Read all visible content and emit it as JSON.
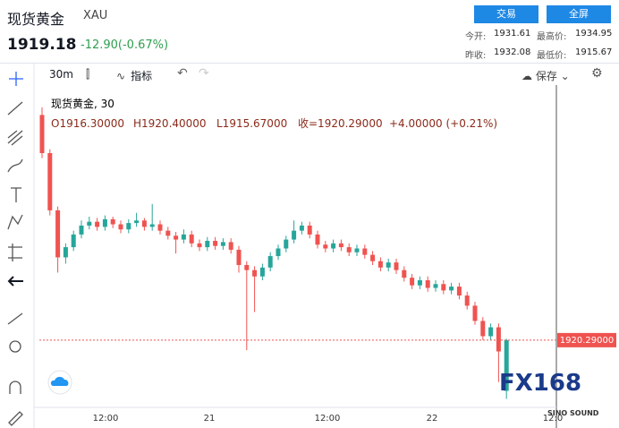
{
  "header": {
    "title": "现货黄金",
    "symbol": "XAU",
    "price": "1919.18",
    "change": "-12.90(-0.67%)",
    "buttons": [
      "交易",
      "全屏"
    ],
    "stats": [
      [
        "今开:",
        "1931.61"
      ],
      [
        "最高价:",
        "1934.95"
      ],
      [
        "昨收:",
        "1932.08"
      ],
      [
        "最低价:",
        "1915.67"
      ]
    ]
  },
  "toolbar": {
    "interval": "30m",
    "indicators": "指标",
    "save": "保存"
  },
  "legend": {
    "name": "现货黄金, 30",
    "open": "O1916.30000",
    "high": "H1920.40000",
    "low": "L1915.67000",
    "close": "收=1920.29000",
    "change": "+4.00000 (+0.21%)"
  },
  "watermark": {
    "brand": "FX168",
    "sub": "SINO SOUND"
  },
  "chart": {
    "type": "candlestick",
    "up_color": "#26a69a",
    "down_color": "#ef5350",
    "ylim": [
      1915.0,
      1940.0
    ],
    "xticks": [
      "12:00",
      "21",
      "12:00",
      "22",
      "12:0"
    ],
    "price_label": {
      "value": 1920.29,
      "label": "1920.29000"
    },
    "candles": [
      [
        1938.0,
        1938.6,
        1934.6,
        1935.0
      ],
      [
        1935.0,
        1935.3,
        1930.1,
        1930.5
      ],
      [
        1930.5,
        1930.8,
        1925.6,
        1926.8
      ],
      [
        1926.8,
        1927.9,
        1926.3,
        1927.6
      ],
      [
        1927.6,
        1928.9,
        1927.3,
        1928.6
      ],
      [
        1928.6,
        1929.7,
        1928.3,
        1929.3
      ],
      [
        1929.3,
        1930.0,
        1929.0,
        1929.6
      ],
      [
        1929.6,
        1929.9,
        1928.9,
        1929.2
      ],
      [
        1929.2,
        1930.1,
        1928.9,
        1929.8
      ],
      [
        1929.8,
        1930.0,
        1929.1,
        1929.4
      ],
      [
        1929.4,
        1929.7,
        1928.7,
        1929.0
      ],
      [
        1929.0,
        1929.8,
        1928.7,
        1929.5
      ],
      [
        1929.5,
        1930.3,
        1929.2,
        1929.7
      ],
      [
        1929.7,
        1929.9,
        1928.9,
        1929.2
      ],
      [
        1929.2,
        1931.0,
        1928.9,
        1929.4
      ],
      [
        1929.4,
        1929.7,
        1928.6,
        1928.9
      ],
      [
        1928.9,
        1929.2,
        1928.2,
        1928.5
      ],
      [
        1928.5,
        1928.8,
        1927.1,
        1928.2
      ],
      [
        1928.2,
        1929.0,
        1927.9,
        1928.6
      ],
      [
        1928.6,
        1928.9,
        1927.6,
        1927.9
      ],
      [
        1927.9,
        1928.2,
        1927.3,
        1927.6
      ],
      [
        1927.6,
        1928.4,
        1927.3,
        1928.1
      ],
      [
        1928.1,
        1928.4,
        1927.4,
        1927.7
      ],
      [
        1927.7,
        1928.3,
        1927.4,
        1928.0
      ],
      [
        1928.0,
        1928.3,
        1927.1,
        1927.4
      ],
      [
        1927.4,
        1927.7,
        1925.6,
        1926.2
      ],
      [
        1926.2,
        1926.5,
        1919.5,
        1925.8
      ],
      [
        1925.8,
        1926.1,
        1922.5,
        1925.3
      ],
      [
        1925.3,
        1926.3,
        1925.0,
        1926.0
      ],
      [
        1926.0,
        1927.2,
        1925.7,
        1926.9
      ],
      [
        1926.9,
        1927.8,
        1926.6,
        1927.5
      ],
      [
        1927.5,
        1928.5,
        1927.2,
        1928.2
      ],
      [
        1928.2,
        1929.7,
        1927.9,
        1928.9
      ],
      [
        1928.9,
        1929.6,
        1928.6,
        1929.3
      ],
      [
        1929.3,
        1929.6,
        1928.3,
        1928.6
      ],
      [
        1928.6,
        1928.9,
        1927.5,
        1927.8
      ],
      [
        1927.8,
        1928.1,
        1927.2,
        1927.5
      ],
      [
        1927.5,
        1928.2,
        1927.2,
        1927.9
      ],
      [
        1927.9,
        1928.2,
        1927.3,
        1927.6
      ],
      [
        1927.6,
        1927.9,
        1926.9,
        1927.2
      ],
      [
        1927.2,
        1927.8,
        1926.9,
        1927.5
      ],
      [
        1927.5,
        1927.8,
        1926.7,
        1927.0
      ],
      [
        1927.0,
        1927.3,
        1926.2,
        1926.5
      ],
      [
        1926.5,
        1926.8,
        1925.7,
        1926.0
      ],
      [
        1926.0,
        1926.7,
        1925.7,
        1926.4
      ],
      [
        1926.4,
        1926.7,
        1925.5,
        1925.8
      ],
      [
        1925.8,
        1926.1,
        1924.9,
        1925.2
      ],
      [
        1925.2,
        1925.5,
        1924.3,
        1924.6
      ],
      [
        1924.6,
        1925.3,
        1924.3,
        1925.0
      ],
      [
        1925.0,
        1925.3,
        1924.1,
        1924.4
      ],
      [
        1924.4,
        1925.0,
        1924.1,
        1924.7
      ],
      [
        1924.7,
        1925.0,
        1923.9,
        1924.2
      ],
      [
        1924.2,
        1924.8,
        1923.9,
        1924.5
      ],
      [
        1924.5,
        1924.8,
        1923.5,
        1923.8
      ],
      [
        1923.8,
        1924.1,
        1922.7,
        1923.0
      ],
      [
        1923.0,
        1923.3,
        1921.5,
        1921.8
      ],
      [
        1921.8,
        1922.1,
        1920.3,
        1920.6
      ],
      [
        1920.6,
        1921.6,
        1920.3,
        1921.3
      ],
      [
        1921.3,
        1921.6,
        1917.0,
        1919.4
      ],
      [
        1916.3,
        1920.4,
        1915.67,
        1920.29
      ]
    ]
  }
}
